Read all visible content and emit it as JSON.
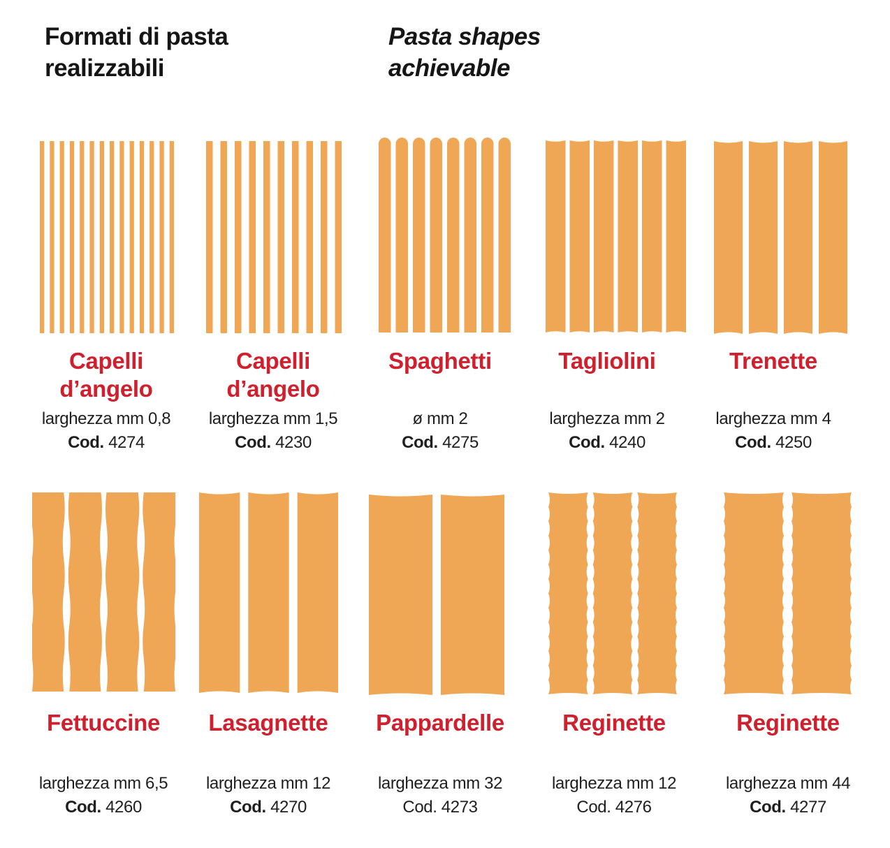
{
  "header": {
    "title_it": [
      "Formati di pasta",
      "realizzabili"
    ],
    "title_en": [
      "Pasta shapes",
      "achievable"
    ]
  },
  "colors": {
    "pasta": "#f0a755",
    "name": "#d0202e",
    "text": "#1f1f1f"
  },
  "shapes": [
    {
      "name_lines": [
        "Capelli",
        "d’angelo"
      ],
      "spec": "larghezza mm 0,8",
      "cod_label": "Cod.",
      "cod_value": "4274",
      "cod_bold": true,
      "strands": 14,
      "style": "thin"
    },
    {
      "name_lines": [
        "Capelli",
        "d’angelo"
      ],
      "spec": "larghezza mm 1,5",
      "cod_label": "Cod.",
      "cod_value": "4230",
      "cod_bold": true,
      "strands": 10,
      "style": "thin"
    },
    {
      "name_lines": [
        "Spaghetti"
      ],
      "spec": "ø mm 2",
      "cod_label": "Cod.",
      "cod_value": "4275",
      "cod_bold": true,
      "strands": 8,
      "style": "round-top"
    },
    {
      "name_lines": [
        "Tagliolini"
      ],
      "spec": "larghezza mm 2",
      "cod_label": "Cod.",
      "cod_value": "4240",
      "cod_bold": true,
      "strands": 6,
      "style": "flat"
    },
    {
      "name_lines": [
        "Trenette"
      ],
      "spec": "larghezza mm 4",
      "cod_label": "Cod.",
      "cod_value": "4250",
      "cod_bold": true,
      "strands": 4,
      "style": "flat"
    },
    {
      "name_lines": [
        "Fettuccine"
      ],
      "spec": "larghezza mm 6,5",
      "cod_label": "Cod.",
      "cod_value": "4260",
      "cod_bold": true,
      "strands": 4,
      "style": "wavy-loose"
    },
    {
      "name_lines": [
        "Lasagnette"
      ],
      "spec": "larghezza mm 12",
      "cod_label": "Cod.",
      "cod_value": "4270",
      "cod_bold": true,
      "strands": 3,
      "style": "flat"
    },
    {
      "name_lines": [
        "Pappardelle"
      ],
      "spec": "larghezza mm 32",
      "cod_label": "Cod.",
      "cod_value": "4273",
      "cod_bold": false,
      "strands": 2,
      "style": "flat"
    },
    {
      "name_lines": [
        "Reginette"
      ],
      "spec": "larghezza mm 12",
      "cod_label": "Cod.",
      "cod_value": "4276",
      "cod_bold": false,
      "strands": 3,
      "style": "wavy-edge"
    },
    {
      "name_lines": [
        "Reginette"
      ],
      "spec": "larghezza mm 44",
      "cod_label": "Cod.",
      "cod_value": "4277",
      "cod_bold": true,
      "strands": 2,
      "style": "wavy-edge"
    }
  ]
}
